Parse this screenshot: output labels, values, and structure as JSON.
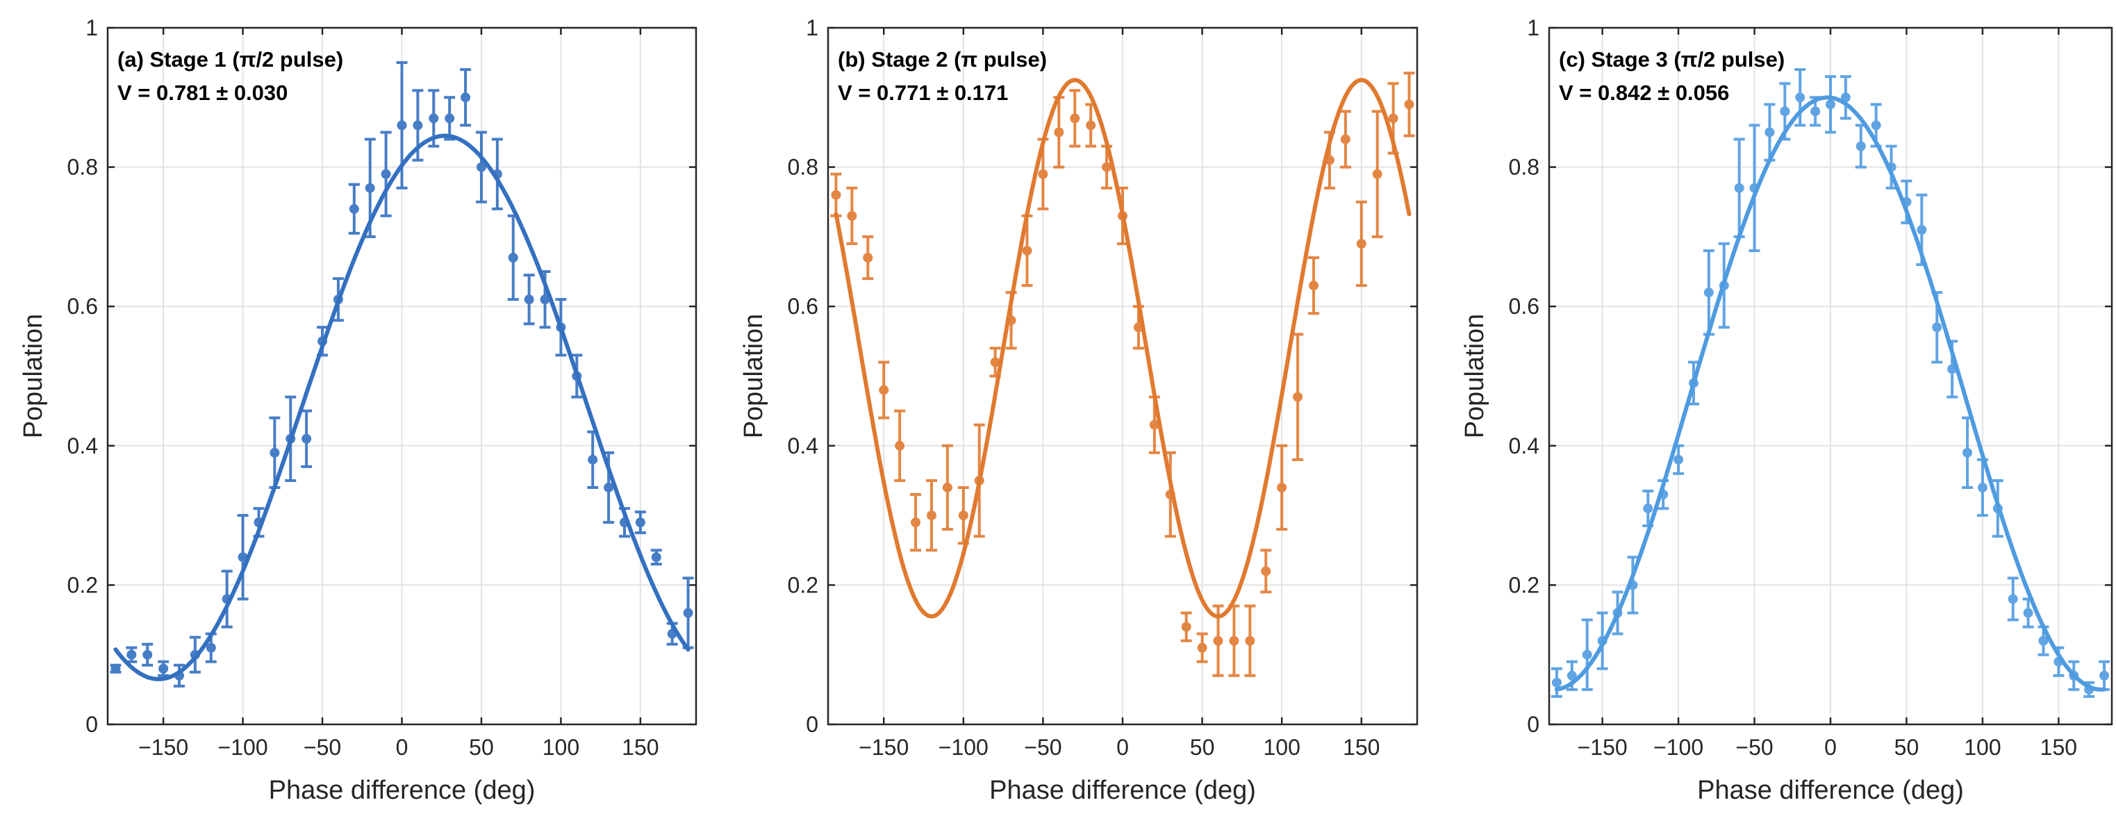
{
  "figure": {
    "background": "#ffffff"
  },
  "chart_data": [
    {
      "type": "scatter",
      "panel": "a",
      "title": "(a) Stage 1 (π/2 pulse)",
      "annotation": "V = 0.781 ± 0.030",
      "xlabel": "Phase difference (deg)",
      "ylabel": "Population",
      "xlim": [
        -185,
        185
      ],
      "ylim": [
        0,
        1
      ],
      "xticks": [
        -150,
        -100,
        -50,
        0,
        50,
        100,
        150
      ],
      "yticks": [
        0,
        0.2,
        0.4,
        0.6,
        0.8,
        1
      ],
      "ytick_labels": [
        "0",
        "0.2",
        "0.4",
        "0.6",
        "0.8",
        "1"
      ],
      "grid": true,
      "color": "#3470c0",
      "fit": {
        "type": "cosine",
        "offset": 0.455,
        "amplitude": 0.39,
        "frequency": 1,
        "phase_deg": 27,
        "line_width": 6
      },
      "series": [
        {
          "name": "measured",
          "x": [
            -180,
            -170,
            -160,
            -150,
            -140,
            -130,
            -120,
            -110,
            -100,
            -90,
            -80,
            -70,
            -60,
            -50,
            -40,
            -30,
            -20,
            -10,
            0,
            10,
            20,
            30,
            40,
            50,
            60,
            70,
            80,
            90,
            100,
            110,
            120,
            130,
            140,
            150,
            160,
            170,
            180
          ],
          "y": [
            0.08,
            0.1,
            0.1,
            0.08,
            0.07,
            0.1,
            0.11,
            0.18,
            0.24,
            0.29,
            0.39,
            0.41,
            0.41,
            0.55,
            0.61,
            0.74,
            0.77,
            0.79,
            0.86,
            0.86,
            0.87,
            0.87,
            0.9,
            0.8,
            0.79,
            0.67,
            0.61,
            0.61,
            0.57,
            0.5,
            0.38,
            0.34,
            0.29,
            0.29,
            0.24,
            0.13,
            0.16
          ],
          "err": [
            0.005,
            0.01,
            0.015,
            0.01,
            0.015,
            0.025,
            0.02,
            0.04,
            0.06,
            0.02,
            0.05,
            0.06,
            0.04,
            0.02,
            0.03,
            0.035,
            0.07,
            0.06,
            0.09,
            0.05,
            0.04,
            0.03,
            0.04,
            0.05,
            0.05,
            0.06,
            0.035,
            0.04,
            0.04,
            0.03,
            0.04,
            0.05,
            0.02,
            0.015,
            0.01,
            0.015,
            0.05
          ]
        }
      ]
    },
    {
      "type": "scatter",
      "panel": "b",
      "title": "(b) Stage 2 (π pulse)",
      "annotation": "V = 0.771 ± 0.171",
      "xlabel": "Phase difference (deg)",
      "ylabel": "Population",
      "xlim": [
        -185,
        185
      ],
      "ylim": [
        0,
        1
      ],
      "xticks": [
        -150,
        -100,
        -50,
        0,
        50,
        100,
        150
      ],
      "yticks": [
        0,
        0.2,
        0.4,
        0.6,
        0.8,
        1
      ],
      "ytick_labels": [
        "0",
        "0.2",
        "0.4",
        "0.6",
        "0.8",
        "1"
      ],
      "grid": true,
      "color": "#e07a30",
      "fit": {
        "type": "cosine",
        "offset": 0.54,
        "amplitude": 0.385,
        "frequency": 2,
        "phase_deg": -30,
        "line_width": 6
      },
      "series": [
        {
          "name": "measured",
          "x": [
            -180,
            -170,
            -160,
            -150,
            -140,
            -130,
            -120,
            -110,
            -100,
            -90,
            -80,
            -70,
            -60,
            -50,
            -40,
            -30,
            -20,
            -10,
            0,
            10,
            20,
            30,
            40,
            50,
            60,
            70,
            80,
            90,
            100,
            110,
            120,
            130,
            140,
            150,
            160,
            170,
            180
          ],
          "y": [
            0.76,
            0.73,
            0.67,
            0.48,
            0.4,
            0.29,
            0.3,
            0.34,
            0.3,
            0.35,
            0.52,
            0.58,
            0.68,
            0.79,
            0.85,
            0.87,
            0.86,
            0.8,
            0.73,
            0.57,
            0.43,
            0.33,
            0.14,
            0.11,
            0.12,
            0.12,
            0.12,
            0.22,
            0.34,
            0.47,
            0.63,
            0.81,
            0.84,
            0.69,
            0.79,
            0.87,
            0.89
          ],
          "err": [
            0.03,
            0.04,
            0.03,
            0.04,
            0.05,
            0.04,
            0.05,
            0.06,
            0.04,
            0.08,
            0.02,
            0.04,
            0.05,
            0.05,
            0.05,
            0.04,
            0.03,
            0.03,
            0.04,
            0.03,
            0.04,
            0.06,
            0.02,
            0.02,
            0.05,
            0.05,
            0.05,
            0.03,
            0.06,
            0.09,
            0.04,
            0.04,
            0.04,
            0.06,
            0.09,
            0.05,
            0.045
          ]
        }
      ]
    },
    {
      "type": "scatter",
      "panel": "c",
      "title": "(c) Stage 3 (π/2 pulse)",
      "annotation": "V = 0.842 ± 0.056",
      "xlabel": "Phase difference (deg)",
      "ylabel": "Population",
      "xlim": [
        -185,
        185
      ],
      "ylim": [
        0,
        1
      ],
      "xticks": [
        -150,
        -100,
        -50,
        0,
        50,
        100,
        150
      ],
      "yticks": [
        0,
        0.2,
        0.4,
        0.6,
        0.8,
        1
      ],
      "ytick_labels": [
        "0",
        "0.2",
        "0.4",
        "0.6",
        "0.8",
        "1"
      ],
      "grid": true,
      "color": "#4f9be0",
      "fit": {
        "type": "cosine",
        "offset": 0.475,
        "amplitude": 0.425,
        "frequency": 1,
        "phase_deg": -2,
        "line_width": 6
      },
      "series": [
        {
          "name": "measured",
          "x": [
            -180,
            -170,
            -160,
            -150,
            -140,
            -130,
            -120,
            -110,
            -100,
            -90,
            -80,
            -70,
            -60,
            -50,
            -40,
            -30,
            -20,
            -10,
            0,
            10,
            20,
            30,
            40,
            50,
            60,
            70,
            80,
            90,
            100,
            110,
            120,
            130,
            140,
            150,
            160,
            170,
            180
          ],
          "y": [
            0.06,
            0.07,
            0.1,
            0.12,
            0.16,
            0.2,
            0.31,
            0.33,
            0.38,
            0.49,
            0.62,
            0.63,
            0.77,
            0.77,
            0.85,
            0.88,
            0.9,
            0.88,
            0.89,
            0.9,
            0.83,
            0.86,
            0.8,
            0.75,
            0.71,
            0.57,
            0.51,
            0.39,
            0.34,
            0.31,
            0.18,
            0.16,
            0.12,
            0.09,
            0.07,
            0.05,
            0.07
          ],
          "err": [
            0.02,
            0.02,
            0.05,
            0.04,
            0.03,
            0.04,
            0.025,
            0.02,
            0.02,
            0.03,
            0.06,
            0.06,
            0.07,
            0.09,
            0.04,
            0.04,
            0.04,
            0.02,
            0.04,
            0.03,
            0.03,
            0.03,
            0.03,
            0.03,
            0.05,
            0.05,
            0.04,
            0.05,
            0.04,
            0.04,
            0.03,
            0.02,
            0.02,
            0.02,
            0.02,
            0.01,
            0.02
          ]
        }
      ]
    }
  ]
}
